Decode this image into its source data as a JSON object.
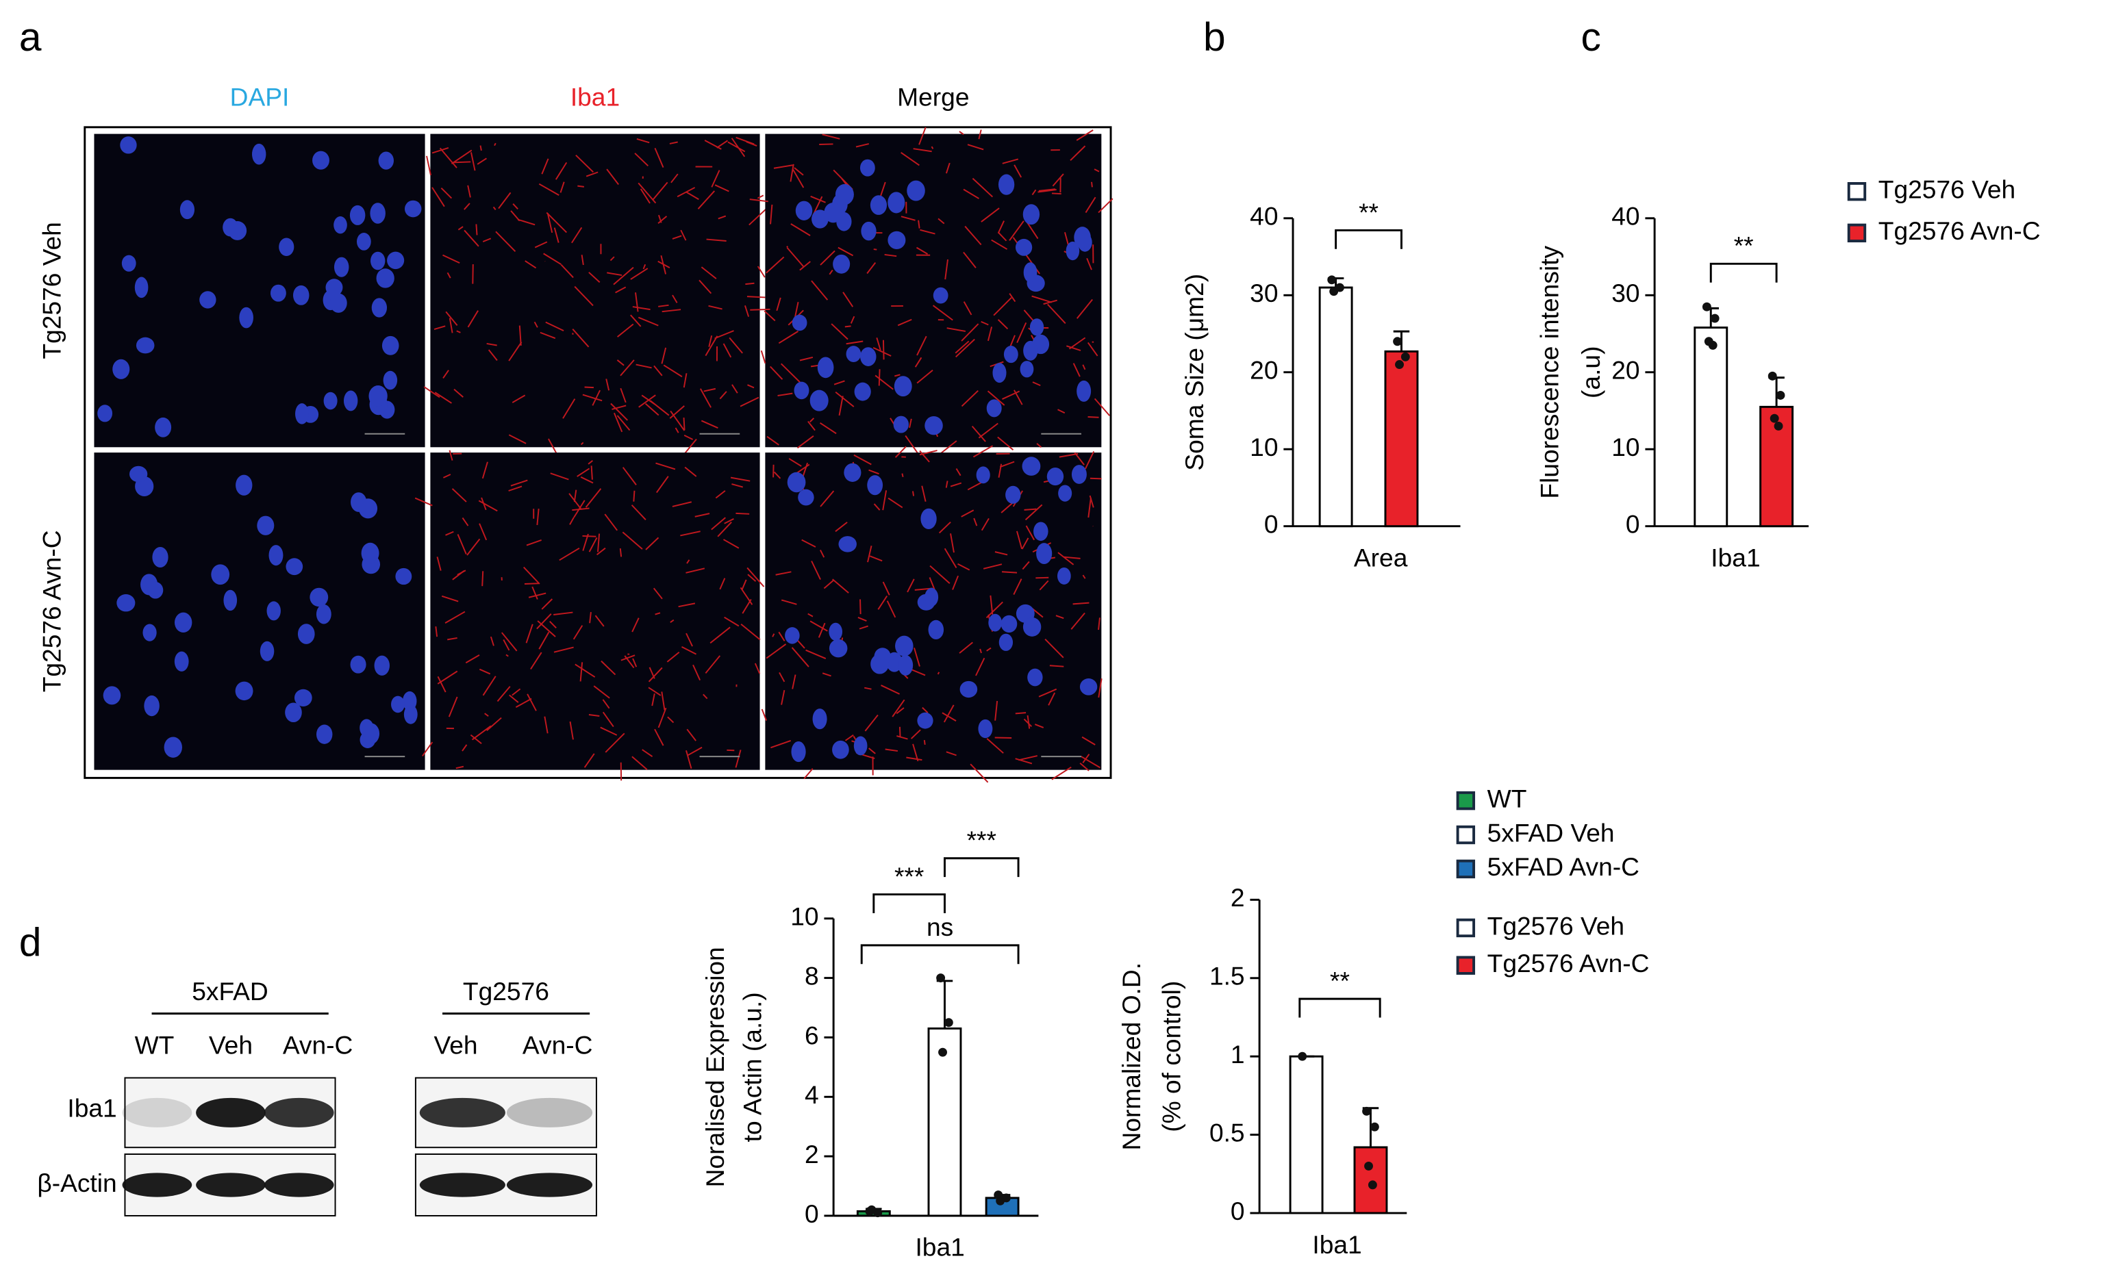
{
  "panel_letters": [
    "a",
    "b",
    "c",
    "d"
  ],
  "micrographs": {
    "columns": [
      "DAPI",
      "Iba1",
      "Merge"
    ],
    "column_colors": [
      "#29a8e0",
      "#e8222a",
      "#000000"
    ],
    "rows": [
      "Tg2576 Veh",
      "Tg2576 Avn-C"
    ]
  },
  "blots": {
    "groups": [
      {
        "title": "5xFAD",
        "lanes": [
          "WT",
          "Veh",
          "Avn-C"
        ]
      },
      {
        "title": "Tg2576",
        "lanes": [
          "Veh",
          "Avn-C"
        ]
      }
    ],
    "rows": [
      "Iba1",
      "β-Actin"
    ]
  },
  "chart_data": [
    {
      "type": "bar",
      "ylabel": [
        "Soma Size (μm2)"
      ],
      "categories": [
        "Area"
      ],
      "ylim": [
        0,
        40
      ],
      "yticks": [
        0,
        10,
        20,
        30,
        40
      ],
      "legend": false,
      "annotations": [
        "**"
      ],
      "series": [
        {
          "color": "#ffffff",
          "values": [
            31
          ],
          "errors": [
            1.2
          ],
          "points": [
            [
              32,
              31,
              30.5
            ]
          ]
        },
        {
          "color": "#e8222a",
          "values": [
            22.7
          ],
          "errors": [
            2.6
          ],
          "points": [
            [
              24,
              22,
              21
            ]
          ]
        }
      ]
    },
    {
      "type": "bar",
      "ylabel": [
        "Fluorescence intensity",
        "(a.u)"
      ],
      "categories": [
        "Iba1"
      ],
      "ylim": [
        0,
        40
      ],
      "yticks": [
        0,
        10,
        20,
        30,
        40
      ],
      "legend": true,
      "annotations": [
        "**"
      ],
      "series": [
        {
          "name": "Tg2576 Veh",
          "color": "#ffffff",
          "values": [
            25.8
          ],
          "errors": [
            2.5
          ],
          "points": [
            [
              28.5,
              27,
              24,
              23.5
            ]
          ]
        },
        {
          "name": "Tg2576 Avn-C",
          "color": "#e8222a",
          "values": [
            15.5
          ],
          "errors": [
            3.8
          ],
          "points": [
            [
              19.5,
              17,
              14,
              13
            ]
          ]
        }
      ]
    },
    {
      "type": "bar",
      "ylabel": [
        "Noralised Expression",
        "to Actin (a.u.)"
      ],
      "categories": [
        "Iba1"
      ],
      "ylim": [
        0,
        10
      ],
      "yticks": [
        0,
        2,
        4,
        6,
        8,
        10
      ],
      "legend": true,
      "annotations": [
        "***",
        "***",
        "ns"
      ],
      "series": [
        {
          "name": "WT",
          "color": "#1a9a4a",
          "values": [
            0.15
          ],
          "errors": [
            0.08
          ],
          "points": [
            [
              0.15,
              0.1,
              0.2
            ]
          ]
        },
        {
          "name": "5xFAD Veh",
          "color": "#ffffff",
          "values": [
            6.3
          ],
          "errors": [
            1.6
          ],
          "points": [
            [
              8,
              6.5,
              5.5
            ]
          ]
        },
        {
          "name": "5xFAD Avn-C",
          "color": "#1f70b8",
          "values": [
            0.6
          ],
          "errors": [
            0.1
          ],
          "points": [
            [
              0.7,
              0.6,
              0.5
            ]
          ]
        }
      ]
    },
    {
      "type": "bar",
      "ylabel": [
        "Normalized O.D.",
        "(% of control)"
      ],
      "categories": [
        "Iba1"
      ],
      "ylim": [
        0,
        2
      ],
      "yticks": [
        0,
        0.5,
        1,
        1.5,
        2
      ],
      "legend": true,
      "annotations": [
        "**"
      ],
      "series": [
        {
          "name": "Tg2576 Veh",
          "color": "#ffffff",
          "values": [
            1.0
          ],
          "errors": [
            0
          ],
          "points": [
            [
              1.0
            ]
          ]
        },
        {
          "name": "Tg2576 Avn-C",
          "color": "#e8222a",
          "values": [
            0.42
          ],
          "errors": [
            0.25
          ],
          "points": [
            [
              0.65,
              0.55,
              0.3,
              0.18
            ]
          ]
        }
      ]
    }
  ]
}
